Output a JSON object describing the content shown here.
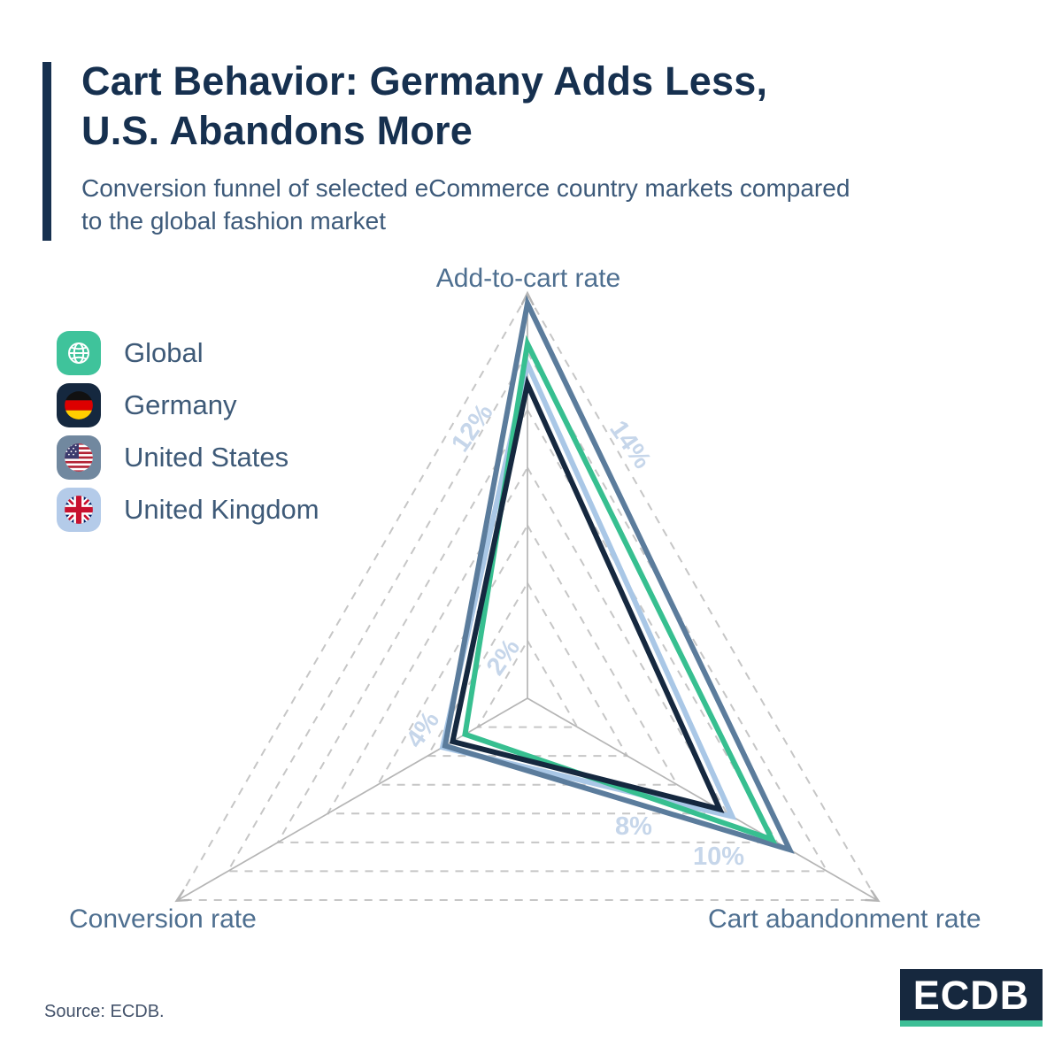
{
  "header": {
    "title_line1": "Cart Behavior: Germany Adds Less,",
    "title_line2": "U.S. Abandons More",
    "subtitle_line1": "Conversion funnel of selected eCommerce country markets compared",
    "subtitle_line2": "to the global fashion market",
    "accent_color": "#16304f"
  },
  "legend": {
    "items": [
      {
        "label": "Global",
        "tile_color": "#3fc39b",
        "flag": "globe"
      },
      {
        "label": "Germany",
        "tile_color": "#15283f",
        "flag": "germany"
      },
      {
        "label": "United States",
        "tile_color": "#71889f",
        "flag": "usa"
      },
      {
        "label": "United Kingdom",
        "tile_color": "#b4cbe9",
        "flag": "uk"
      }
    ]
  },
  "chart_data": {
    "type": "radar",
    "axes": [
      "Add-to-cart rate",
      "Cart abandonment rate",
      "Conversion rate"
    ],
    "unit": "%",
    "axis_max": 14,
    "grid_step": 2,
    "grid": "dashed-triangular-rings",
    "tick_labels": [
      "2%",
      "4%",
      "8%",
      "10%",
      "12%",
      "14%"
    ],
    "series": [
      {
        "name": "Global",
        "color": "#37bf90",
        "values": [
          12.3,
          9.8,
          2.5
        ]
      },
      {
        "name": "Germany",
        "color": "#15283f",
        "values": [
          10.9,
          7.7,
          3.0
        ]
      },
      {
        "name": "United States",
        "color": "#5b7c9c",
        "values": [
          13.7,
          10.5,
          3.3
        ]
      },
      {
        "name": "United Kingdom",
        "color": "#a9c7e6",
        "values": [
          11.6,
          8.2,
          3.4
        ]
      }
    ],
    "draw_order": [
      3,
      2,
      0,
      1
    ],
    "legend_position": "upper-left"
  },
  "footer": {
    "source": "Source: ECDB.",
    "logo_text": "ECDB",
    "logo_bg": "#16283e",
    "logo_accent": "#3dbf96"
  }
}
